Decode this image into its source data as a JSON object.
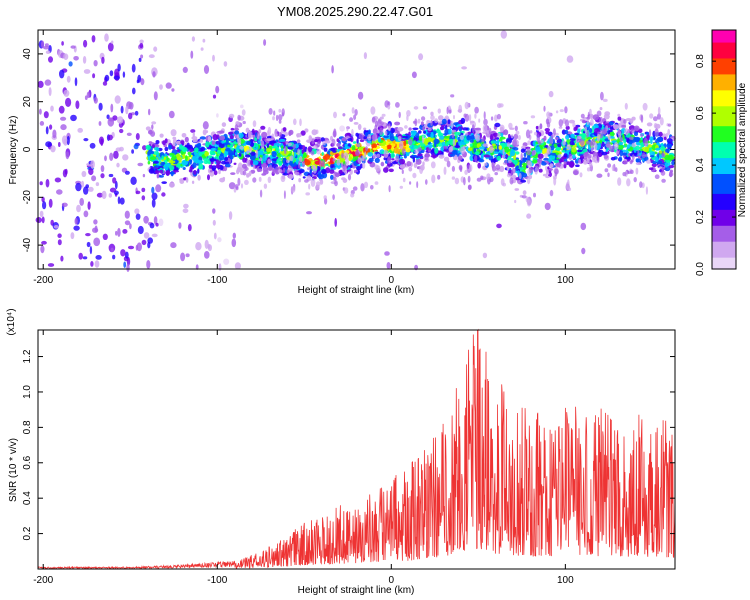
{
  "title": "YM08.2025.290.22.47.G01",
  "colors": {
    "trace": "#ee3333",
    "axis": "#000000",
    "colormap": [
      "#e9d6f7",
      "#d0a8f0",
      "#a55ee8",
      "#7000e8",
      "#2400ff",
      "#0050ff",
      "#00c8ff",
      "#00ffb0",
      "#20ff20",
      "#b0ff00",
      "#ffff00",
      "#ffb000",
      "#ff4000",
      "#ff0040",
      "#ff00b0"
    ]
  },
  "chart_data": [
    {
      "type": "heatmap",
      "name": "spectrogram",
      "xlabel": "Height of straight line (km)",
      "ylabel": "Frequency (Hz)",
      "xlim": [
        -203,
        163
      ],
      "ylim": [
        -50,
        50
      ],
      "x_ticks": [
        -200,
        -100,
        0,
        100
      ],
      "x_tick_labels": [
        "-200",
        "-100",
        "0",
        "100"
      ],
      "y_ticks": [
        -40,
        -20,
        0,
        20,
        40
      ],
      "y_tick_labels": [
        "-40",
        "-20",
        "0",
        "20",
        "40"
      ],
      "colorbar": {
        "label": "Normalized spectral amplitude",
        "range": [
          0,
          0.92
        ],
        "ticks": [
          0,
          0.2,
          0.4,
          0.6,
          0.8
        ],
        "tick_labels": [
          "0.0",
          "0.2",
          "0.4",
          "0.6",
          "0.8"
        ]
      },
      "ridge": {
        "x": [
          -200,
          -150,
          -130,
          -110,
          -90,
          -75,
          -60,
          -45,
          -35,
          -25,
          -15,
          -5,
          5,
          15,
          25,
          35,
          45,
          55,
          65,
          75,
          85,
          95,
          105,
          115,
          125,
          135,
          145,
          155,
          163
        ],
        "y": [
          0,
          1,
          -5,
          -3,
          1,
          -1,
          -2,
          -5,
          -4,
          -2,
          0,
          2,
          1,
          2,
          4,
          5,
          2,
          0,
          2,
          -8,
          0,
          -1,
          1,
          5,
          4,
          2,
          1,
          -1,
          -3
        ]
      }
    },
    {
      "type": "line",
      "name": "snr",
      "xlabel": "Height of straight line (km)",
      "ylabel": "SNR (10 * v/v)",
      "y_scale_label": "(x10⁴)",
      "xlim": [
        -203,
        163
      ],
      "ylim": [
        0,
        1.35
      ],
      "x_ticks": [
        -200,
        -100,
        0,
        100
      ],
      "x_tick_labels": [
        "-200",
        "-100",
        "0",
        "100"
      ],
      "y_ticks": [
        0.2,
        0.4,
        0.6,
        0.8,
        1.0,
        1.2
      ],
      "y_tick_labels": [
        "0.2",
        "0.4",
        "0.6",
        "0.8",
        "1.0",
        "1.2"
      ],
      "envelope": {
        "x": [
          -203,
          -150,
          -120,
          -90,
          -80,
          -70,
          -60,
          -50,
          -40,
          -30,
          -20,
          -10,
          0,
          10,
          20,
          30,
          40,
          50,
          60,
          70,
          80,
          90,
          100,
          110,
          120,
          130,
          140,
          150,
          163
        ],
        "y": [
          0.01,
          0.01,
          0.02,
          0.04,
          0.08,
          0.13,
          0.18,
          0.26,
          0.3,
          0.35,
          0.38,
          0.45,
          0.5,
          0.58,
          0.72,
          0.82,
          1.2,
          1.35,
          1.05,
          0.95,
          0.88,
          0.9,
          0.95,
          0.9,
          0.88,
          0.9,
          0.85,
          0.85,
          0.8
        ]
      }
    }
  ]
}
